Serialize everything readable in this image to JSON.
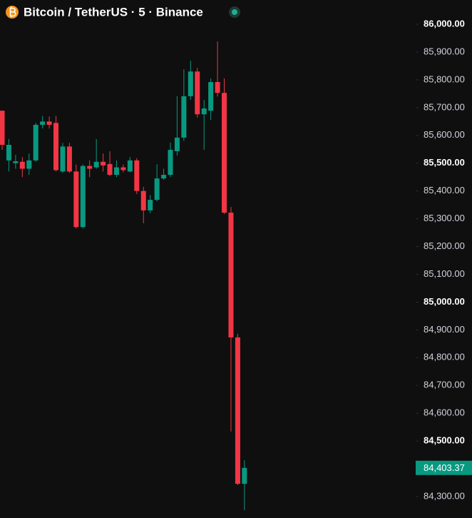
{
  "chart_data": {
    "type": "candlestick",
    "title": "Bitcoin / TetherUS · 5 · Binance",
    "up_color": "#089981",
    "down_color": "#f23645",
    "open": [
      85689,
      85510,
      85500,
      85505,
      85480,
      85510,
      85638,
      85650,
      85645,
      85470,
      85560,
      85470,
      85270,
      85490,
      85485,
      85505,
      85497,
      85458,
      85485,
      85470,
      85510,
      85400,
      85330,
      85368,
      85445,
      85458,
      85543,
      85592,
      85741,
      85830,
      85676,
      85689,
      85792,
      85753,
      85322,
      84873,
      84346
    ],
    "high": [
      85689,
      85587,
      85530,
      85522,
      85535,
      85645,
      85670,
      85668,
      85670,
      85573,
      85573,
      85495,
      85495,
      85510,
      85587,
      85535,
      85543,
      85510,
      85495,
      85522,
      85518,
      85415,
      85385,
      85496,
      85480,
      85574,
      85741,
      85838,
      85869,
      85843,
      85728,
      85805,
      85938,
      85805,
      85343,
      84886,
      84431
    ],
    "low": [
      85548,
      85470,
      85480,
      85450,
      85458,
      85505,
      85625,
      85625,
      85470,
      85465,
      85465,
      85265,
      85265,
      85450,
      85480,
      85470,
      85453,
      85450,
      85467,
      85467,
      85389,
      85284,
      85320,
      85363,
      85440,
      85450,
      85527,
      85580,
      85728,
      85664,
      85548,
      85656,
      85740,
      85317,
      84534,
      84341,
      84251
    ],
    "close": [
      85566,
      85566,
      85507,
      85480,
      85510,
      85638,
      85650,
      85638,
      85475,
      85560,
      85470,
      85270,
      85490,
      85480,
      85505,
      85492,
      85458,
      85485,
      85475,
      85510,
      85400,
      85330,
      85368,
      85445,
      85458,
      85548,
      85592,
      85741,
      85830,
      85676,
      85697,
      85792,
      85753,
      85322,
      84873,
      84346,
      84403.37
    ],
    "ylim": [
      84300,
      86000
    ],
    "yticks": [
      {
        "value": 86000,
        "label": "86,000.00"
      },
      {
        "value": 85900,
        "label": "85,900.00"
      },
      {
        "value": 85800,
        "label": "85,800.00"
      },
      {
        "value": 85700,
        "label": "85,700.00"
      },
      {
        "value": 85600,
        "label": "85,600.00"
      },
      {
        "value": 85500,
        "label": "85,500.00"
      },
      {
        "value": 85400,
        "label": "85,400.00"
      },
      {
        "value": 85300,
        "label": "85,300.00"
      },
      {
        "value": 85200,
        "label": "85,200.00"
      },
      {
        "value": 85100,
        "label": "85,100.00"
      },
      {
        "value": 85000,
        "label": "85,000.00"
      },
      {
        "value": 84900,
        "label": "84,900.00"
      },
      {
        "value": 84800,
        "label": "84,800.00"
      },
      {
        "value": 84700,
        "label": "84,700.00"
      },
      {
        "value": 84600,
        "label": "84,600.00"
      },
      {
        "value": 84500,
        "label": "84,500.00"
      },
      {
        "value": 84300,
        "label": "84,300.00"
      }
    ],
    "last_price": {
      "value": 84403.37,
      "label": "84,403.37"
    }
  }
}
